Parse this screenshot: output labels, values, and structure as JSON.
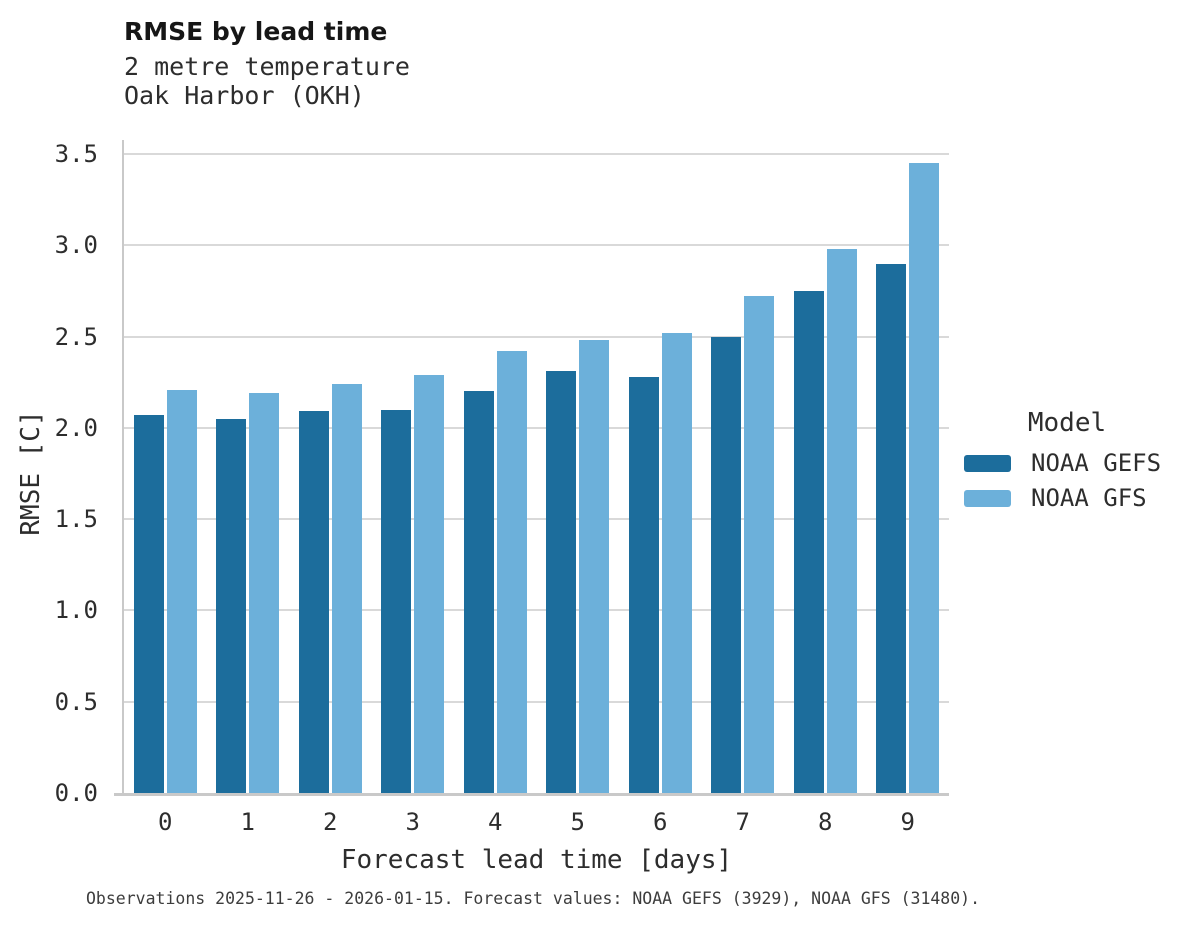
{
  "chart_data": {
    "type": "bar",
    "title": "RMSE by lead time",
    "subtitle1": "2 metre temperature",
    "subtitle2": "Oak Harbor (OKH)",
    "xlabel": "Forecast lead time [days]",
    "ylabel": "RMSE [C]",
    "categories": [
      "0",
      "1",
      "2",
      "3",
      "4",
      "5",
      "6",
      "7",
      "8",
      "9"
    ],
    "series": [
      {
        "name": "NOAA GEFS",
        "color": "#1c6d9c",
        "values": [
          2.07,
          2.05,
          2.09,
          2.1,
          2.2,
          2.31,
          2.28,
          2.5,
          2.75,
          2.9
        ]
      },
      {
        "name": "NOAA GFS",
        "color": "#6cb0da",
        "values": [
          2.21,
          2.19,
          2.24,
          2.29,
          2.42,
          2.48,
          2.52,
          2.72,
          2.98,
          3.45
        ]
      }
    ],
    "ylim": [
      0,
      3.5
    ],
    "yticks": [
      0,
      0.5,
      1,
      1.5,
      2,
      2.5,
      3,
      3.5
    ],
    "grid": true,
    "legend": {
      "title": "Model",
      "position": "right"
    }
  },
  "caption": {
    "text": "Observations 2025-11-26 - 2026-01-15. Forecast values: NOAA GEFS (3929), NOAA GFS (31480)."
  },
  "colors": {
    "grid": "#d9d9d9",
    "spine": "#c9c9c9",
    "text": "#2d2d2d",
    "title": "#161616",
    "caption": "#3d3d3d"
  }
}
